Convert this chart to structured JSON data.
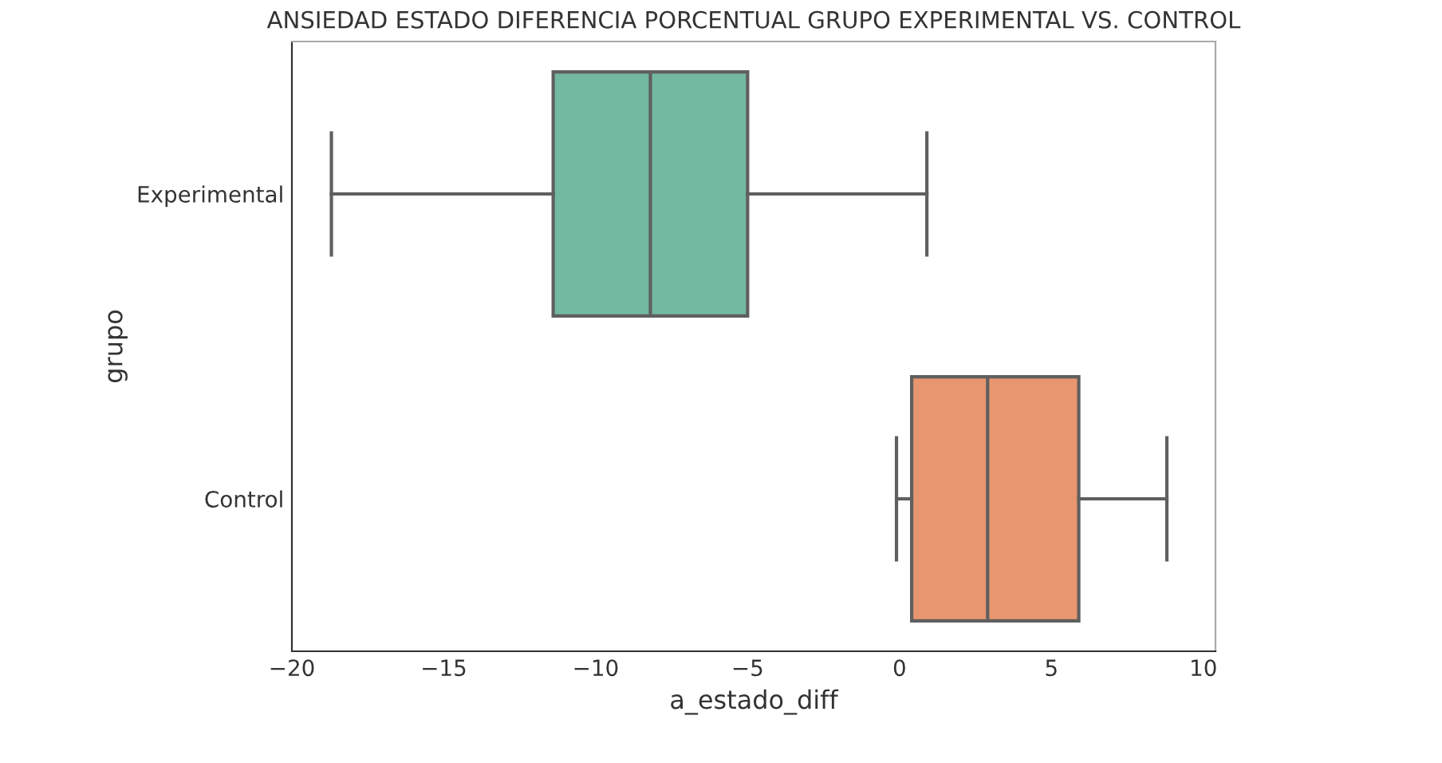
{
  "chart_data": {
    "type": "box",
    "orientation": "horizontal",
    "title": "ANSIEDAD ESTADO DIFERENCIA PORCENTUAL GRUPO EXPERIMENTAL VS. CONTROL",
    "xlabel": "a_estado_diff",
    "ylabel": "grupo",
    "categories": [
      "Experimental",
      "Control"
    ],
    "colors": [
      "#73b8a0",
      "#e8966f"
    ],
    "boxes": [
      {
        "low": -18.7,
        "q1": -11.4,
        "median": -8.2,
        "q3": -5.0,
        "high": 0.9
      },
      {
        "low": -0.1,
        "q1": 0.4,
        "median": 2.9,
        "q3": 5.9,
        "high": 8.8
      }
    ],
    "xlim": [
      -20,
      10.4
    ],
    "xticks": [
      {
        "value": -20,
        "label": "−20"
      },
      {
        "value": -15,
        "label": "−15"
      },
      {
        "value": -10,
        "label": "−10"
      },
      {
        "value": -5,
        "label": "−5"
      },
      0,
      5,
      10
    ],
    "grid": false
  }
}
